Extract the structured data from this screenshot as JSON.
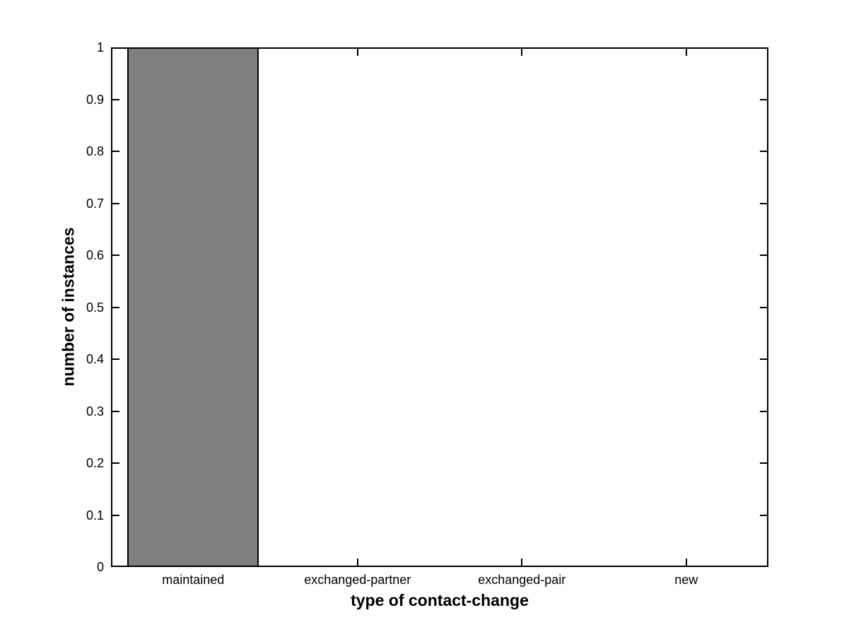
{
  "chart_data": {
    "type": "bar",
    "title": "",
    "xlabel": "type of contact-change",
    "ylabel": "number of instances",
    "categories": [
      "maintained",
      "exchanged-partner",
      "exchanged-pair",
      "new"
    ],
    "values": [
      1,
      0,
      0,
      0
    ],
    "ylim": [
      0,
      1
    ],
    "yticks": [
      0,
      0.1,
      0.2,
      0.3,
      0.4,
      0.5,
      0.6,
      0.7,
      0.8,
      0.9,
      1
    ],
    "ytick_labels": [
      "0",
      "0.1",
      "0.2",
      "0.3",
      "0.4",
      "0.5",
      "0.6",
      "0.7",
      "0.8",
      "0.9",
      "1"
    ],
    "bar_width_fraction": 0.8,
    "grid": false,
    "legend": "none",
    "box": true,
    "tick_direction": "in",
    "colors": {
      "bar_fill": "#7f7f7f",
      "bar_edge": "#000000",
      "axis": "#000000",
      "background": "#ffffff",
      "text": "#000000"
    }
  }
}
